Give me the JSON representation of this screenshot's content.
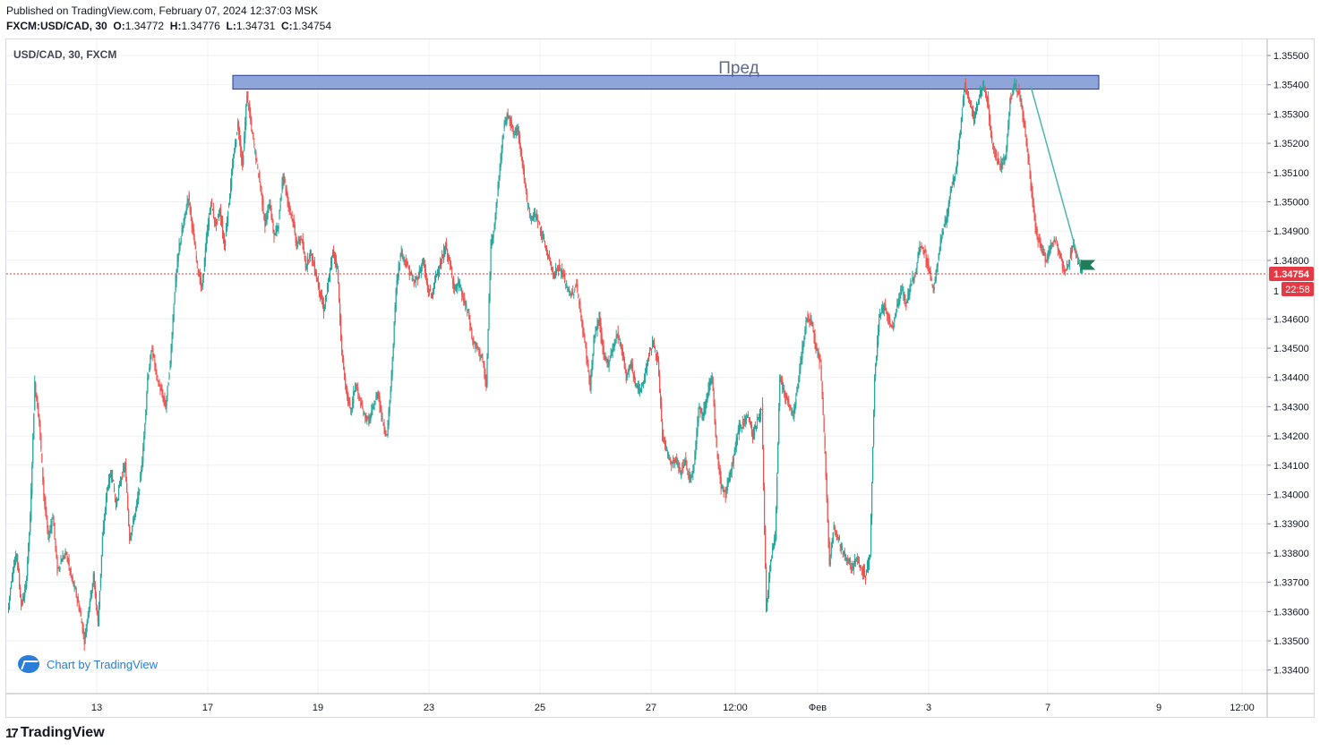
{
  "header": {
    "published": "Published on TradingView.com, February 07, 2024 12:37:03 MSK",
    "symbol": "FXCM:USD/CAD, 30",
    "ohlc": [
      {
        "k": "O:",
        "v": "1.34772"
      },
      {
        "k": "H:",
        "v": "1.34776"
      },
      {
        "k": "L:",
        "v": "1.34731"
      },
      {
        "k": "C:",
        "v": "1.34754"
      }
    ]
  },
  "chart_label": "USD/CAD, 30, FXCM",
  "watermark": "Chart by TradingView",
  "footer_brand": "TradingView",
  "footer_mark": "17",
  "colors": {
    "up": "#26a69a",
    "down": "#ef5350",
    "zone_fill": "#8fa4d8",
    "zone_border": "#2b3a8f",
    "trend": "#4db6ac",
    "price_line": "#e53935",
    "grid": "#eef0f3"
  },
  "chart_data": {
    "type": "candlestick",
    "symbol": "USD/CAD",
    "interval": "30",
    "ylim": [
      1.3333,
      1.3556
    ],
    "y_ticks": [
      "1.35500",
      "1.35400",
      "1.35300",
      "1.35200",
      "1.35100",
      "1.35000",
      "1.34900",
      "1.34800",
      "1.34600",
      "1.34500",
      "1.34400",
      "1.34300",
      "1.34200",
      "1.34100",
      "1.34000",
      "1.33900",
      "1.33800",
      "1.33700",
      "1.33600",
      "1.33500",
      "1.33400"
    ],
    "x_ticks": [
      "13",
      "17",
      "19",
      "23",
      "25",
      "27",
      "12:00",
      "Фев",
      "3",
      "7",
      "9",
      "12:00"
    ],
    "current_price": "1.34754",
    "countdown": "22:58",
    "hidden_tick_stub": "1",
    "zone": {
      "label": "Пред",
      "top": 1.35432,
      "bottom": 1.35385
    },
    "trendline": {
      "from": 1.35395,
      "to": 1.34775
    },
    "path": [
      1.336,
      1.3373,
      1.338,
      1.3362,
      1.3368,
      1.3392,
      1.3438,
      1.3425,
      1.34,
      1.3385,
      1.3393,
      1.3374,
      1.3378,
      1.338,
      1.3372,
      1.3367,
      1.336,
      1.335,
      1.3362,
      1.3372,
      1.3356,
      1.3385,
      1.3402,
      1.3408,
      1.3396,
      1.3405,
      1.341,
      1.3385,
      1.3392,
      1.34,
      1.3415,
      1.344,
      1.345,
      1.344,
      1.3435,
      1.343,
      1.3445,
      1.347,
      1.3485,
      1.3493,
      1.3502,
      1.349,
      1.3478,
      1.347,
      1.3487,
      1.35,
      1.3492,
      1.3497,
      1.3485,
      1.35,
      1.3515,
      1.3527,
      1.3512,
      1.3537,
      1.3525,
      1.3515,
      1.3505,
      1.3492,
      1.35,
      1.3488,
      1.3493,
      1.351,
      1.35,
      1.3495,
      1.3485,
      1.3488,
      1.3478,
      1.3483,
      1.3477,
      1.347,
      1.3463,
      1.3472,
      1.3483,
      1.3478,
      1.3448,
      1.3435,
      1.3428,
      1.3438,
      1.3432,
      1.3427,
      1.3425,
      1.343,
      1.3435,
      1.3425,
      1.342,
      1.344,
      1.347,
      1.3483,
      1.348,
      1.3476,
      1.3472,
      1.3475,
      1.348,
      1.347,
      1.3468,
      1.3476,
      1.3479,
      1.3485,
      1.3478,
      1.347,
      1.3472,
      1.3466,
      1.3462,
      1.3452,
      1.345,
      1.3447,
      1.3437,
      1.3485,
      1.3495,
      1.3512,
      1.3527,
      1.353,
      1.3523,
      1.3525,
      1.3513,
      1.35,
      1.3494,
      1.3496,
      1.349,
      1.3485,
      1.348,
      1.3475,
      1.3478,
      1.3475,
      1.347,
      1.3468,
      1.3472,
      1.346,
      1.345,
      1.3437,
      1.3455,
      1.346,
      1.3447,
      1.3445,
      1.345,
      1.3455,
      1.345,
      1.344,
      1.3445,
      1.3438,
      1.3435,
      1.344,
      1.3448,
      1.3452,
      1.3445,
      1.342,
      1.3415,
      1.341,
      1.3412,
      1.3407,
      1.3412,
      1.3405,
      1.341,
      1.343,
      1.3427,
      1.3435,
      1.344,
      1.3415,
      1.3403,
      1.34,
      1.3407,
      1.3415,
      1.3423,
      1.3425,
      1.3427,
      1.342,
      1.3425,
      1.343,
      1.336,
      1.3378,
      1.3385,
      1.344,
      1.3435,
      1.343,
      1.3427,
      1.3438,
      1.345,
      1.346,
      1.346,
      1.345,
      1.3445,
      1.3415,
      1.3375,
      1.339,
      1.3385,
      1.338,
      1.3378,
      1.3375,
      1.3378,
      1.3375,
      1.3372,
      1.338,
      1.344,
      1.346,
      1.3465,
      1.346,
      1.3457,
      1.3465,
      1.347,
      1.3465,
      1.3472,
      1.3475,
      1.3485,
      1.3483,
      1.3477,
      1.347,
      1.348,
      1.349,
      1.3495,
      1.3505,
      1.351,
      1.3525,
      1.354,
      1.3535,
      1.3528,
      1.3535,
      1.354,
      1.3535,
      1.352,
      1.3515,
      1.3512,
      1.3515,
      1.3535,
      1.354,
      1.3537,
      1.3528,
      1.3515,
      1.35,
      1.3487,
      1.3484,
      1.348,
      1.3485,
      1.3487,
      1.3482,
      1.3476,
      1.3479,
      1.3486,
      1.348,
      1.34754
    ]
  }
}
